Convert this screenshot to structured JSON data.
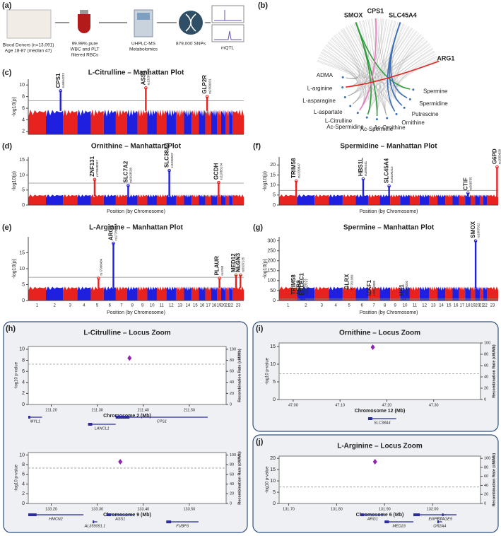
{
  "panel_labels": [
    "(a)",
    "(b)",
    "(c)",
    "(d)",
    "(e)",
    "(f)",
    "(g)",
    "(h)",
    "(i)",
    "(j)"
  ],
  "workflow": {
    "donors": [
      "Blood Donors (n=13,091)",
      "Age 18-87 (median 47)"
    ],
    "filter": [
      "99.99% pure",
      "WBC and PLT",
      "filtered RBCs"
    ],
    "ms": [
      "UHPLC-MS",
      "Metabolomics"
    ],
    "snps": "879,000 SNPs",
    "mqtl": "mQTL"
  },
  "circos": {
    "genes": [
      {
        "name": "SMOX",
        "color": "#2e9e3a"
      },
      {
        "name": "CPS1",
        "color": "#e87ac0"
      },
      {
        "name": "SLC45A4",
        "color": "#3b6fb8"
      },
      {
        "name": "ARG1",
        "color": "#e8231f"
      }
    ],
    "metabolites": [
      "ADMA",
      "L-arginine",
      "L-asparagine",
      "L-aspartate",
      "L-Citrulline",
      "Ac-Spermidine",
      "Ac-Spermine",
      "Ac-Ornithine",
      "Ornithine",
      "Putrescine",
      "Spermidine",
      "Spermine"
    ],
    "links": [
      [
        0,
        11
      ],
      [
        0,
        5
      ],
      [
        0,
        6
      ],
      [
        1,
        4
      ],
      [
        2,
        10
      ],
      [
        2,
        9
      ],
      [
        2,
        8
      ],
      [
        3,
        1
      ]
    ]
  },
  "chromosomes": [
    "1",
    "2",
    "3",
    "4",
    "5",
    "6",
    "7",
    "8",
    "9",
    "10",
    "11",
    "12",
    "13",
    "14",
    "15",
    "16",
    "17",
    "18",
    "19",
    "20",
    "21",
    "22",
    "23"
  ],
  "manhattan": [
    {
      "title": "L-Citrulline – Manhattan Plot",
      "ylabel": "-log10(p)",
      "ylim": [
        1.5,
        11
      ],
      "yticks": [
        2,
        4,
        6,
        8,
        10
      ],
      "threshold": 7.3,
      "peaks": [
        {
          "gene": "CPS1",
          "snp": "rs4664233",
          "chrom": 2,
          "pos": 0.85,
          "value": 9
        },
        {
          "gene": "ASS1",
          "snp": "rs13283072",
          "chrom": 9,
          "pos": 0.85,
          "value": 9.5
        },
        {
          "gene": "GLP2R",
          "snp": "rs2399931",
          "chrom": 17,
          "pos": 0.3,
          "value": 8
        }
      ]
    },
    {
      "title": "Ornithine – Manhattan Plot",
      "ylabel": "-log10(p)",
      "xlabel": "Position (by Chromosome)",
      "ylim": [
        0,
        16
      ],
      "yticks": [
        0,
        5,
        10,
        15
      ],
      "threshold": 7.3,
      "peaks": [
        {
          "gene": "ZNF131",
          "snp": "rs72660007",
          "chrom": 5,
          "pos": 0.3,
          "value": 8.5
        },
        {
          "gene": "SLC7A2",
          "snp": "rs6993538",
          "chrom": 8,
          "pos": 0.1,
          "value": 6.5
        },
        {
          "gene": "SLC38A4",
          "snp": "rs1336507",
          "chrom": 12,
          "pos": 0.3,
          "value": 11.5
        },
        {
          "gene": "GCDH",
          "snp": "rs11883134",
          "chrom": 19,
          "pos": 0.4,
          "value": 7.5
        }
      ]
    },
    {
      "title": "L-Arginine – Manhattan Plot",
      "ylabel": "-log10(p)",
      "xlabel": "Position (by Chromosome)",
      "chromosome_axis": true,
      "ylim": [
        0,
        20
      ],
      "yticks": [
        0,
        5,
        10,
        15
      ],
      "threshold": 7.3,
      "peaks": [
        {
          "snp": "rs77908484",
          "chrom": 5,
          "pos": 0.6,
          "value": 7
        },
        {
          "gene": "ARG1",
          "snp": "rs17788484",
          "chrom": 6,
          "pos": 0.8,
          "value": 18
        },
        {
          "gene": "PLAUR",
          "snp": "rs4760",
          "chrom": 19,
          "pos": 0.6,
          "value": 7
        },
        {
          "gene": "MED12",
          "snp": "rs5030619",
          "chrom": 23,
          "pos": 0.3,
          "value": 8
        },
        {
          "gene": "NLGN3",
          "snp": "rs5937135",
          "chrom": 23,
          "pos": 0.7,
          "value": 8
        }
      ]
    },
    {
      "title": "Spermidine – Manhattan Plot",
      "ylabel": "-log10(p)",
      "xlabel": "Position (by Chromosome)",
      "ylim": [
        0,
        24
      ],
      "yticks": [
        0,
        5,
        10,
        15,
        20
      ],
      "threshold": 7.3,
      "peaks": [
        {
          "gene": "TRIM58",
          "snp": "rs1339847",
          "chrom": 1,
          "pos": 0.95,
          "value": 12
        },
        {
          "gene": "HBS1L",
          "snp": "rs4895441",
          "chrom": 6,
          "pos": 0.6,
          "value": 13
        },
        {
          "gene": "SLC45A4",
          "snp": "rs10100212",
          "chrom": 8,
          "pos": 0.9,
          "value": 9.5
        },
        {
          "gene": "CTIF",
          "snp": "rs568735",
          "chrom": 18,
          "pos": 0.5,
          "value": 6
        },
        {
          "gene": "G6PD",
          "snp": "rs1050828",
          "chrom": 23,
          "pos": 0.9,
          "value": 19
        }
      ]
    },
    {
      "title": "Spermine – Manhattan Plot",
      "ylabel": "-log10(p)",
      "xlabel": "Position (by Chromosome)",
      "chromosome_axis": true,
      "ylim": [
        0,
        320
      ],
      "yticks": [
        0,
        50,
        100,
        150,
        200,
        250,
        300
      ],
      "threshold": 7.3,
      "peaks": [
        {
          "gene": "TRIM58",
          "snp": "rs3811444",
          "chrom": 1,
          "pos": 0.95,
          "value": 15
        },
        {
          "gene": "ASB3",
          "snp": "rs11681747",
          "chrom": 2,
          "pos": 0.25,
          "value": 12
        },
        {
          "gene": "ERLEC1",
          "snp": "rs11687747",
          "chrom": 2,
          "pos": 0.4,
          "value": 12
        },
        {
          "gene": "GLRX",
          "snp": "rs7701969",
          "chrom": 5,
          "pos": 0.5,
          "value": 40
        },
        {
          "gene": "IZKF1",
          "snp": "rs8866080",
          "chrom": 7,
          "pos": 0.3,
          "value": 10
        },
        {
          "gene": "HK1",
          "snp": "rs7088202",
          "chrom": 10,
          "pos": 0.4,
          "value": 10
        },
        {
          "gene": "SMOX",
          "snp": "rs1887022",
          "chrom": 20,
          "pos": 0.1,
          "value": 300
        }
      ]
    }
  ],
  "locus": [
    {
      "title": "L-Citrulline – Locus Zoom",
      "ylabel": "-log10 p-value",
      "y2label": "Recombination Rate (cM/Mb)",
      "xlabel": "Chromosome 2 (Mb)",
      "xlim": [
        211.15,
        211.58
      ],
      "xticks": [
        {
          "value": 211.2,
          "label": "211.20"
        },
        {
          "value": 211.3,
          "label": "211.30"
        },
        {
          "value": 211.4,
          "label": "211.40"
        },
        {
          "value": 211.5,
          "label": "211.50"
        }
      ],
      "ylim": [
        0,
        10.5
      ],
      "yticks": [
        0,
        2,
        4,
        6,
        8,
        10
      ],
      "y2lim": [
        0,
        105
      ],
      "y2ticks": [
        0,
        20,
        40,
        60,
        80,
        100
      ],
      "threshold": 7.3,
      "lead": {
        "x": 211.37,
        "y": 8.4
      },
      "genes": [
        {
          "name": "MYL1",
          "start": 211.15,
          "end": 211.18
        },
        {
          "name": "LANCL1",
          "start": 211.28,
          "end": 211.34
        },
        {
          "name": "CPS1",
          "start": 211.34,
          "end": 211.54
        }
      ]
    },
    {
      "ylabel": "-log10 p-value",
      "y2label": "Recombination Rate (cM/Mb)",
      "xlabel": "Chromosome 9 (Mb)",
      "xlim": [
        133.15,
        133.58
      ],
      "xticks": [
        {
          "value": 133.2,
          "label": "133.20"
        },
        {
          "value": 133.3,
          "label": "133.30"
        },
        {
          "value": 133.4,
          "label": "133.40"
        },
        {
          "value": 133.5,
          "label": "133.50"
        }
      ],
      "ylim": [
        0,
        10.5
      ],
      "yticks": [
        0,
        2,
        4,
        6,
        8,
        10
      ],
      "y2lim": [
        0,
        105
      ],
      "y2ticks": [
        0,
        20,
        40,
        60,
        80,
        100
      ],
      "threshold": 7.3,
      "lead": {
        "x": 133.35,
        "y": 8.6
      },
      "genes": [
        {
          "name": "HMCN2",
          "start": 133.15,
          "end": 133.27
        },
        {
          "name": "AL359091.1",
          "start": 133.29,
          "end": 133.3
        },
        {
          "name": "ASS1",
          "start": 133.32,
          "end": 133.38
        },
        {
          "name": "FUBP3",
          "start": 133.45,
          "end": 133.52
        }
      ]
    },
    {
      "title": "Ornithine – Locus Zoom",
      "ylabel": "-log10 p-value",
      "y2label": "Recombination Rate (cM/Mb)",
      "xlabel": "Chromosome 12 (Mb)",
      "xlim": [
        46.97,
        47.4
      ],
      "xticks": [
        {
          "value": 47,
          "label": "47.00"
        },
        {
          "value": 47.1,
          "label": "47.10"
        },
        {
          "value": 47.2,
          "label": "47.20"
        },
        {
          "value": 47.3,
          "label": "47.30"
        }
      ],
      "ylim": [
        0,
        16
      ],
      "yticks": [
        0,
        5,
        10,
        15
      ],
      "y2lim": [
        0,
        100
      ],
      "y2ticks": [
        0,
        20,
        40,
        60,
        80,
        100
      ],
      "threshold": 7.3,
      "lead": {
        "x": 47.17,
        "y": 14.8
      },
      "genes": [
        {
          "name": "SLC38A4",
          "start": 47.16,
          "end": 47.22
        }
      ]
    },
    {
      "title": "L-Arginine – Locus Zoom",
      "ylabel": "-log10 p-value",
      "y2label": "Recombination Rate (cM/Mb)",
      "xlabel": "Chromosome 6 (Mb)",
      "xlim": [
        131.68,
        132.1
      ],
      "xticks": [
        {
          "value": 131.7,
          "label": "131.70"
        },
        {
          "value": 131.8,
          "label": "131.80"
        },
        {
          "value": 131.9,
          "label": "131.90"
        },
        {
          "value": 132,
          "label": "132.00"
        }
      ],
      "ylim": [
        0,
        21
      ],
      "yticks": [
        0,
        5,
        10,
        15,
        20
      ],
      "y2lim": [
        0,
        105
      ],
      "y2ticks": [
        0,
        20,
        40,
        60,
        80,
        100
      ],
      "threshold": 7.3,
      "lead": {
        "x": 131.88,
        "y": 18.5
      },
      "genes": [
        {
          "name": "ARG1",
          "start": 131.85,
          "end": 131.9
        },
        {
          "name": "MED23",
          "start": 131.9,
          "end": 131.96
        },
        {
          "name": "ENPP3",
          "start": 131.96,
          "end": 132.05
        },
        {
          "name": "OR2A4",
          "start": 132.01,
          "end": 132.02
        },
        {
          "name": "CTAGE9",
          "start": 132.02,
          "end": 132.03
        }
      ]
    }
  ]
}
